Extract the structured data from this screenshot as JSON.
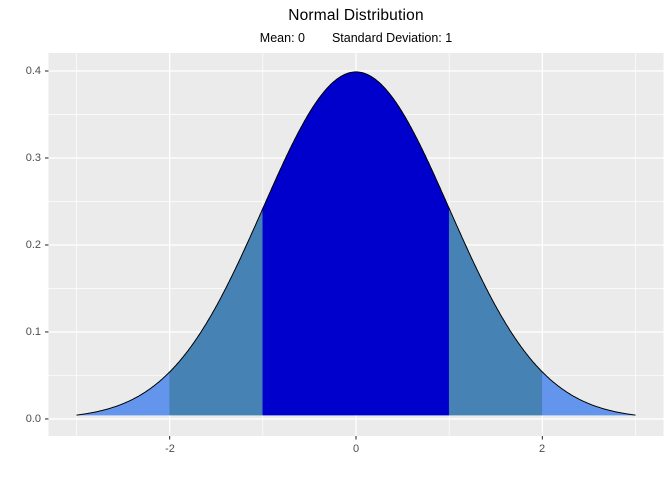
{
  "title": "Normal Distribution",
  "subtitle": {
    "mean_label": "Mean: 0",
    "sd_label": "Standard Deviation: 1"
  },
  "chart_data": {
    "type": "area",
    "distribution": "normal",
    "mean": 0,
    "sd": 1,
    "peak_density": 0.3989,
    "x_range": [
      -3,
      3
    ],
    "xlim": [
      -3.3,
      3.3
    ],
    "ylim": [
      -0.0196,
      0.4207
    ],
    "baseline_density": 0.0044,
    "x_major_ticks": [
      -2,
      0,
      2
    ],
    "x_tick_labels": [
      "-2",
      "0",
      "2"
    ],
    "x_minor_ticks": [
      -3,
      -1,
      1,
      3
    ],
    "y_major_ticks": [
      0,
      0.1,
      0.2,
      0.3,
      0.4
    ],
    "y_tick_labels": [
      "0.0",
      "0.1",
      "0.2",
      "0.3",
      "0.4"
    ],
    "y_minor_ticks": [
      0.05,
      0.15,
      0.25,
      0.35
    ],
    "regions": [
      {
        "from": -3,
        "to": -2,
        "band": "beyond-2sd",
        "color": "#6495ED"
      },
      {
        "from": -2,
        "to": -1,
        "band": "1-to-2sd",
        "color": "#4682B4"
      },
      {
        "from": -1,
        "to": 1,
        "band": "within-1sd",
        "color": "#0000CD"
      },
      {
        "from": 1,
        "to": 2,
        "band": "1-to-2sd",
        "color": "#4682B4"
      },
      {
        "from": 2,
        "to": 3,
        "band": "beyond-2sd",
        "color": "#6495ED"
      }
    ],
    "curve_color": "#000000",
    "panel_bg": "#EBEBEB",
    "grid_color": "#FFFFFF",
    "tick_mark_color": "#333333",
    "axis_label_color": "#4D4D4D",
    "legend": "none",
    "grid": "on"
  }
}
